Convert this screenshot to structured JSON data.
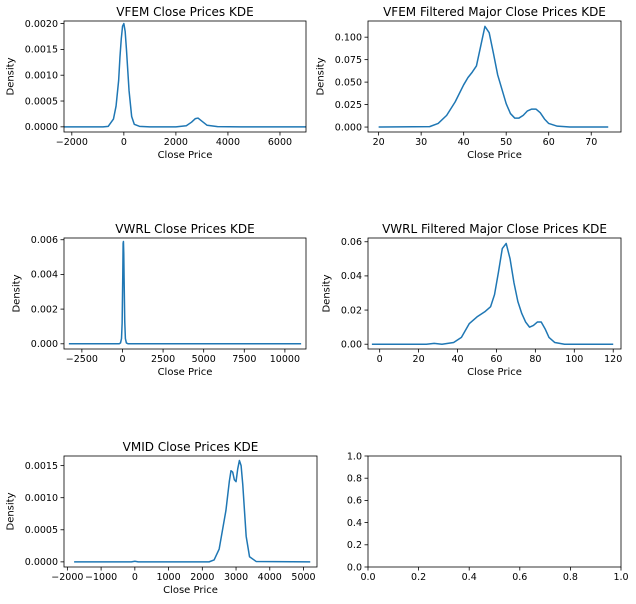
{
  "chart_data": [
    {
      "type": "line",
      "title": "VFEM Close Prices KDE",
      "xlabel": "Close Price",
      "ylabel": "Density",
      "xlim": [
        -2300,
        7000
      ],
      "ylim": [
        -0.0001,
        0.00205
      ],
      "xticks": [
        -2000,
        0,
        2000,
        4000,
        6000
      ],
      "xtick_labels": [
        "−2000",
        "0",
        "2000",
        "4000",
        "6000"
      ],
      "yticks": [
        0,
        0.0005,
        0.001,
        0.0015,
        0.002
      ],
      "ytick_labels": [
        "0.0000",
        "0.0005",
        "0.0010",
        "0.0015",
        "0.0020"
      ],
      "color": "#1f77b4",
      "series": [
        {
          "x": [
            -2300,
            -800,
            -600,
            -400,
            -300,
            -200,
            -150,
            -100,
            -50,
            0,
            50,
            100,
            150,
            200,
            300,
            400,
            600,
            1000,
            2000,
            2400,
            2600,
            2750,
            2850,
            3000,
            3200,
            3600,
            4500,
            7000
          ],
          "y": [
            0,
            0,
            1e-05,
            0.00015,
            0.0004,
            0.0009,
            0.00135,
            0.0017,
            0.00195,
            0.002,
            0.00185,
            0.0015,
            0.0011,
            0.0007,
            0.0002,
            5e-05,
            1e-05,
            0,
            0,
            2e-05,
            9e-05,
            0.00016,
            0.00017,
            0.00011,
            3e-05,
            5e-06,
            0,
            0
          ]
        }
      ]
    },
    {
      "type": "line",
      "title": "VFEM Filtered Major Close Prices KDE",
      "xlabel": "Close Price",
      "ylabel": "Density",
      "xlim": [
        17.5,
        77
      ],
      "ylim": [
        -0.0055,
        0.118
      ],
      "xticks": [
        20,
        30,
        40,
        50,
        60,
        70
      ],
      "xtick_labels": [
        "20",
        "30",
        "40",
        "50",
        "60",
        "70"
      ],
      "yticks": [
        0,
        0.025,
        0.05,
        0.075,
        0.1
      ],
      "ytick_labels": [
        "0.000",
        "0.025",
        "0.050",
        "0.075",
        "0.100"
      ],
      "color": "#1f77b4",
      "series": [
        {
          "x": [
            20,
            32,
            34,
            36,
            38,
            40,
            41,
            42,
            43,
            44,
            45,
            46,
            47,
            48,
            49,
            50,
            51,
            52,
            53,
            54,
            55,
            56,
            57,
            58,
            59,
            60,
            62,
            65,
            74
          ],
          "y": [
            0,
            0.0005,
            0.004,
            0.013,
            0.028,
            0.047,
            0.055,
            0.061,
            0.068,
            0.09,
            0.112,
            0.105,
            0.082,
            0.058,
            0.042,
            0.026,
            0.015,
            0.01,
            0.01,
            0.013,
            0.018,
            0.02,
            0.02,
            0.016,
            0.009,
            0.004,
            0.001,
            0,
            0
          ]
        }
      ]
    },
    {
      "type": "line",
      "title": "VWRL Close Prices KDE",
      "xlabel": "Close Price",
      "ylabel": "Density",
      "xlim": [
        -3600,
        11300
      ],
      "ylim": [
        -0.0003,
        0.0061
      ],
      "xticks": [
        -2500,
        0,
        2500,
        5000,
        7500,
        10000
      ],
      "xtick_labels": [
        "−2500",
        "0",
        "2500",
        "5000",
        "7500",
        "10000"
      ],
      "yticks": [
        0,
        0.002,
        0.004,
        0.006
      ],
      "ytick_labels": [
        "0.000",
        "0.002",
        "0.004",
        "0.006"
      ],
      "color": "#1f77b4",
      "series": [
        {
          "x": [
            -3300,
            -200,
            -120,
            -60,
            -20,
            20,
            40,
            60,
            80,
            100,
            140,
            180,
            240,
            350,
            11000
          ],
          "y": [
            0,
            0,
            5e-05,
            0.0003,
            0.0012,
            0.004,
            0.0058,
            0.0059,
            0.0052,
            0.0038,
            0.0013,
            0.0003,
            5e-05,
            0,
            0
          ]
        }
      ]
    },
    {
      "type": "line",
      "title": "VWRL Filtered Major Close Prices KDE",
      "xlabel": "Close Price",
      "ylabel": "Density",
      "xlim": [
        -6,
        124
      ],
      "ylim": [
        -0.0028,
        0.0622
      ],
      "xticks": [
        0,
        20,
        40,
        60,
        80,
        100,
        120
      ],
      "xtick_labels": [
        "0",
        "20",
        "40",
        "60",
        "80",
        "100",
        "120"
      ],
      "yticks": [
        0,
        0.02,
        0.04,
        0.06
      ],
      "ytick_labels": [
        "0.00",
        "0.02",
        "0.04",
        "0.06"
      ],
      "color": "#1f77b4",
      "series": [
        {
          "x": [
            -4,
            24,
            28,
            32,
            38,
            42,
            46,
            50,
            54,
            57,
            59,
            61,
            63,
            65,
            67,
            69,
            71,
            73,
            75,
            77,
            79,
            81,
            83,
            85,
            87,
            90,
            95,
            120
          ],
          "y": [
            0,
            0,
            0.0005,
            0,
            0.001,
            0.004,
            0.012,
            0.016,
            0.019,
            0.022,
            0.029,
            0.042,
            0.056,
            0.059,
            0.05,
            0.036,
            0.025,
            0.018,
            0.013,
            0.01,
            0.011,
            0.013,
            0.013,
            0.009,
            0.004,
            0.001,
            0,
            0
          ]
        }
      ]
    },
    {
      "type": "line",
      "title": "VMID Close Prices KDE",
      "xlabel": "Close Price",
      "ylabel": "Density",
      "xlim": [
        -2100,
        5400
      ],
      "ylim": [
        -8e-05,
        0.00165
      ],
      "xticks": [
        -2000,
        -1000,
        0,
        1000,
        2000,
        3000,
        4000,
        5000
      ],
      "xtick_labels": [
        "−2000",
        "−1000",
        "0",
        "1000",
        "2000",
        "3000",
        "4000",
        "5000"
      ],
      "yticks": [
        0,
        0.0005,
        0.001,
        0.0015
      ],
      "ytick_labels": [
        "0.0000",
        "0.0005",
        "0.0010",
        "0.0015"
      ],
      "color": "#1f77b4",
      "series": [
        {
          "x": [
            -1800,
            -100,
            0,
            100,
            2200,
            2350,
            2500,
            2600,
            2700,
            2800,
            2850,
            2900,
            2950,
            3000,
            3050,
            3100,
            3150,
            3200,
            3250,
            3300,
            3400,
            3600,
            5200
          ],
          "y": [
            0,
            0,
            1e-05,
            0,
            0,
            3e-05,
            0.0002,
            0.0005,
            0.0008,
            0.00125,
            0.00142,
            0.0014,
            0.00128,
            0.00125,
            0.00145,
            0.00158,
            0.0015,
            0.0012,
            0.0008,
            0.0004,
            8e-05,
            5e-06,
            0
          ]
        }
      ]
    },
    {
      "type": "line",
      "title": "",
      "xlabel": "",
      "ylabel": "",
      "xlim": [
        0,
        1
      ],
      "ylim": [
        0,
        1
      ],
      "xticks": [
        0,
        0.2,
        0.4,
        0.6,
        0.8,
        1
      ],
      "xtick_labels": [
        "0.0",
        "0.2",
        "0.4",
        "0.6",
        "0.8",
        "1.0"
      ],
      "yticks": [
        0,
        0.2,
        0.4,
        0.6,
        0.8,
        1
      ],
      "ytick_labels": [
        "0.0",
        "0.2",
        "0.4",
        "0.6",
        "0.8",
        "1.0"
      ],
      "color": "#1f77b4",
      "series": []
    }
  ]
}
